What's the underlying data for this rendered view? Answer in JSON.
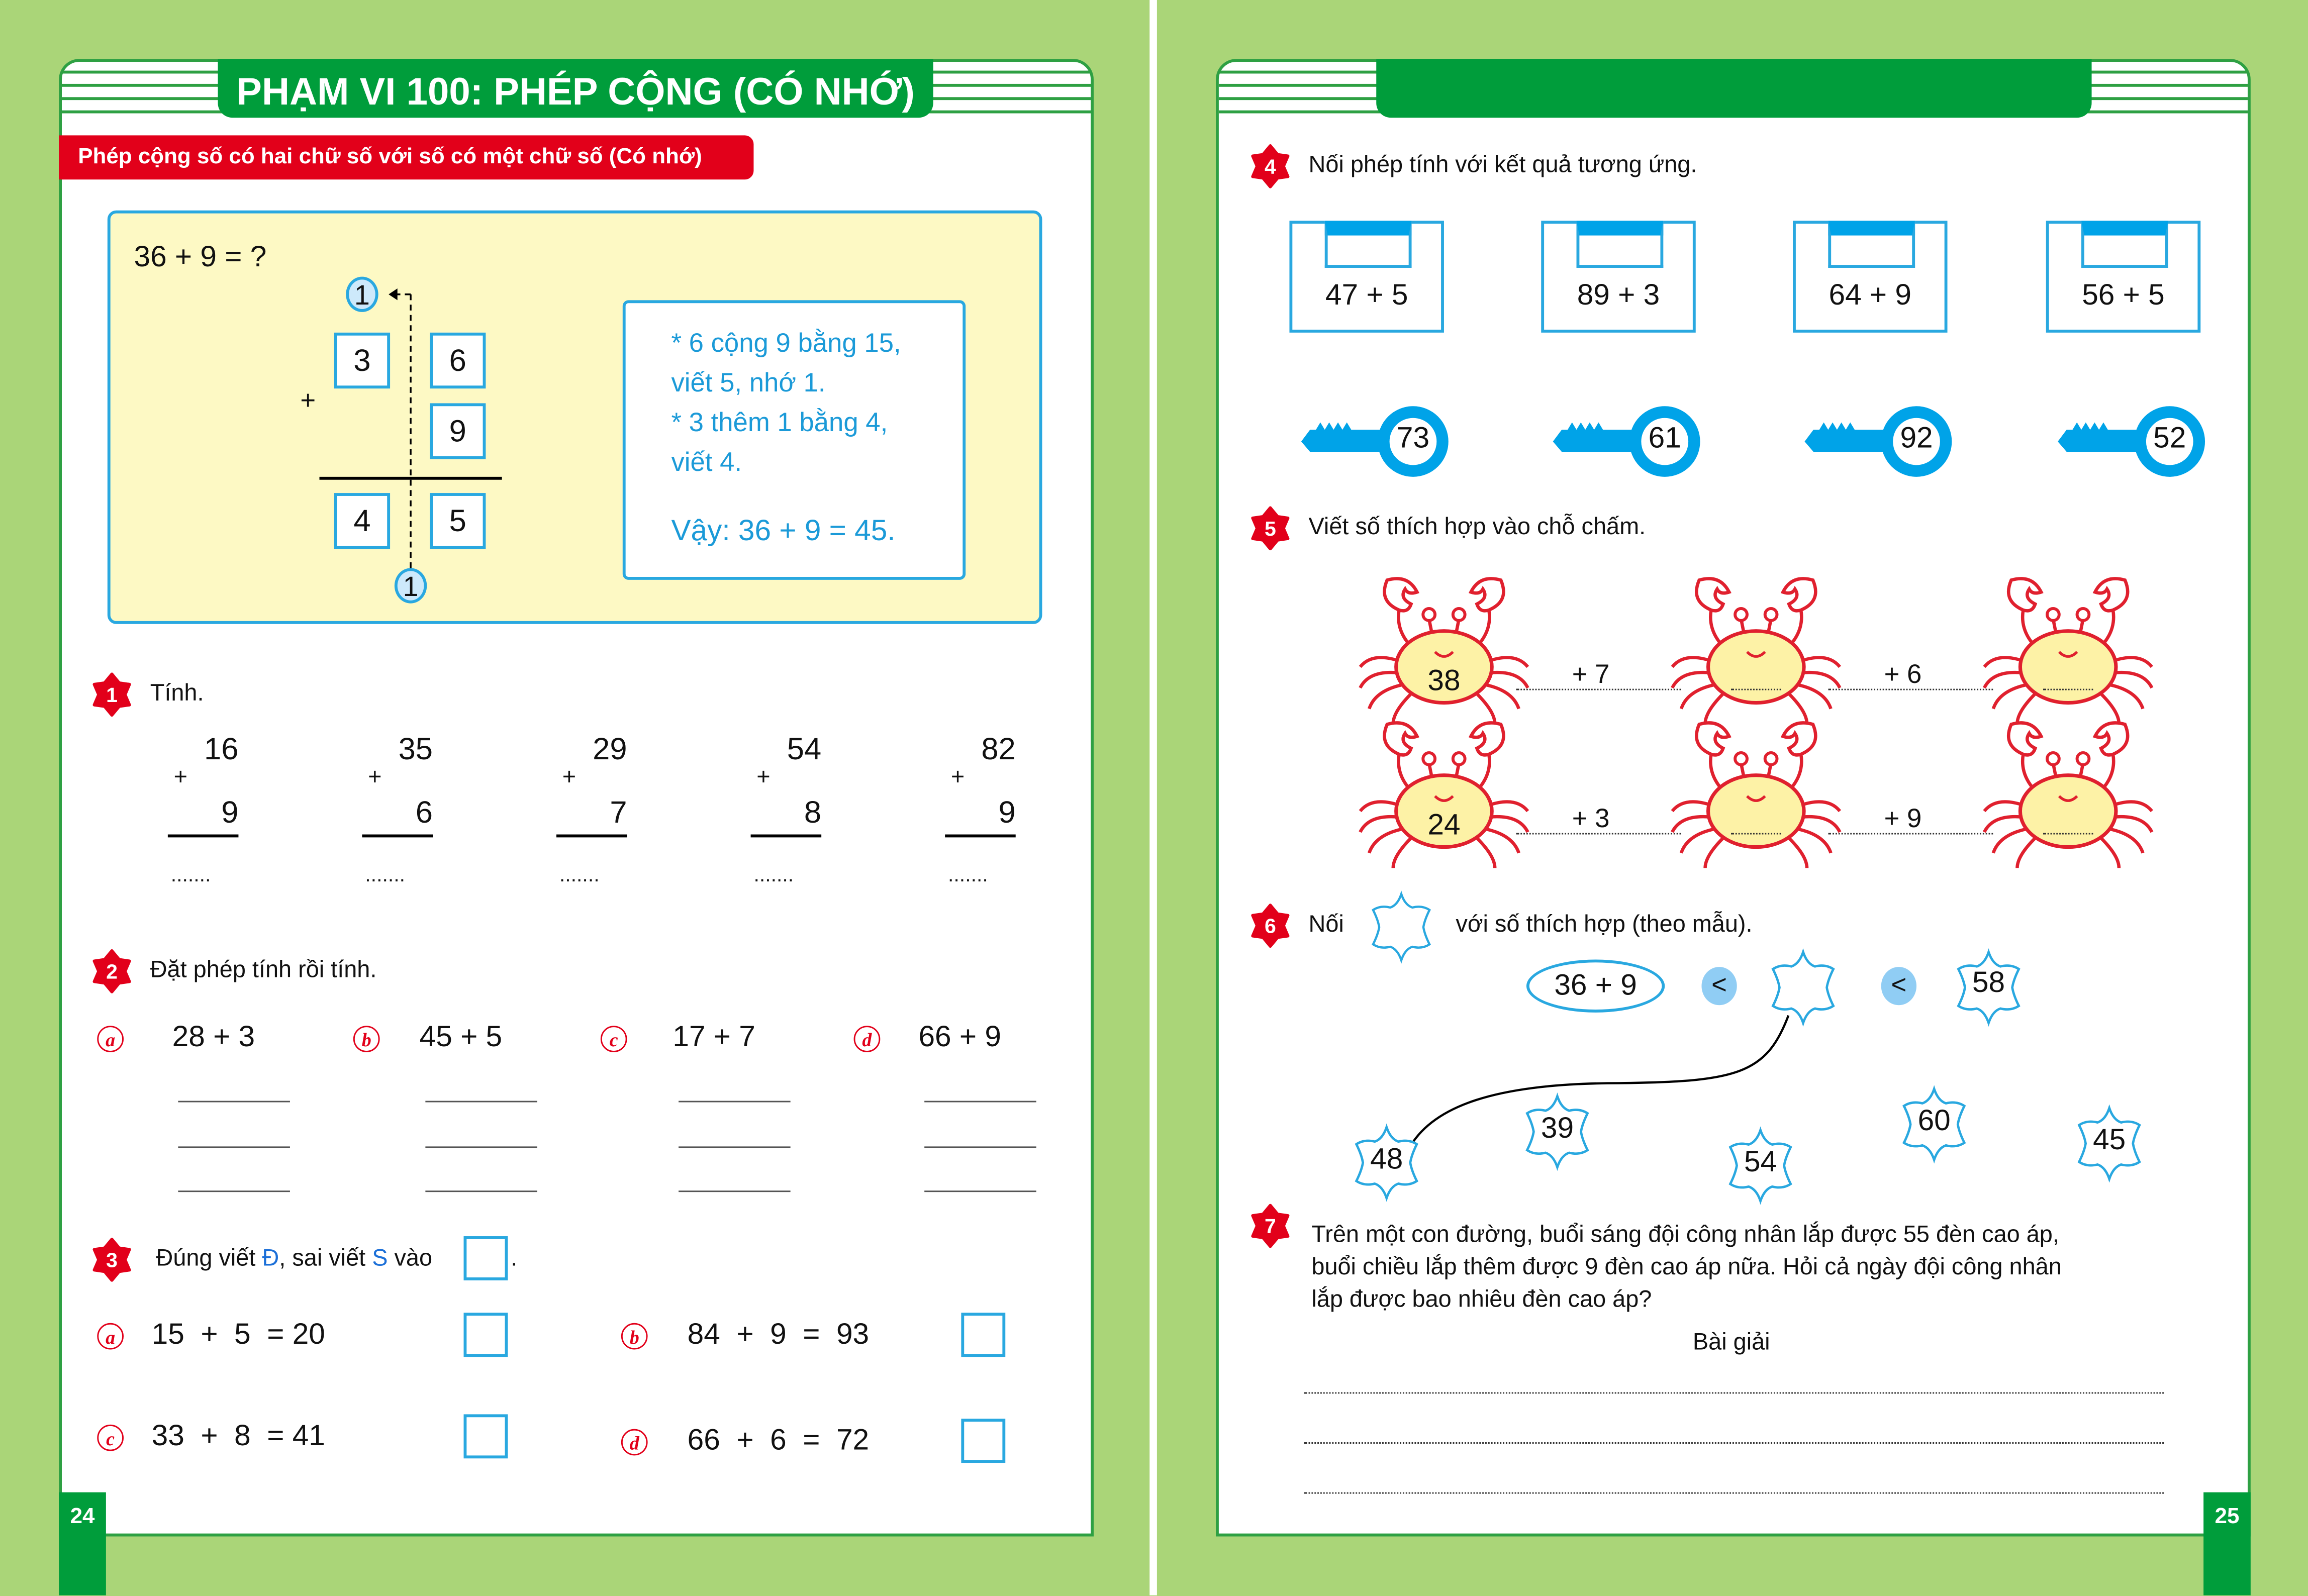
{
  "colors": {
    "background": "#aad578",
    "green": "#009d3b",
    "red": "#e2001a",
    "blue": "#29a8e0",
    "yellow": "#fdf9c4"
  },
  "left_page": {
    "title": "PHẠM VI 100: PHÉP CỘNG (CÓ NHỚ)",
    "subtitle": "Phép cộng số có hai chữ số với số có một chữ số (Có nhớ)",
    "page_number": "24",
    "example": {
      "question": "36 + 9 = ?",
      "carry_top": "1",
      "carry_bottom": "1",
      "plus": "+",
      "digits": {
        "tens_a": "3",
        "units_a": "6",
        "units_b": "9",
        "tens_r": "4",
        "units_r": "5"
      },
      "explanation": [
        "* 6 cộng 9 bằng 15,",
        "viết 5, nhớ 1.",
        "* 3 thêm 1 bằng 4,",
        "viết 4.",
        "Vậy: 36 + 9 = 45."
      ]
    },
    "ex1": {
      "number": "1",
      "instruction": "Tính.",
      "plus": "+",
      "answer_dots": ".......",
      "items": [
        {
          "top": "16",
          "bottom": "9"
        },
        {
          "top": "35",
          "bottom": "6"
        },
        {
          "top": "29",
          "bottom": "7"
        },
        {
          "top": "54",
          "bottom": "8"
        },
        {
          "top": "82",
          "bottom": "9"
        }
      ]
    },
    "ex2": {
      "number": "2",
      "instruction": "Đặt phép tính rồi tính.",
      "items": [
        {
          "letter": "a",
          "expr": "28 + 3"
        },
        {
          "letter": "b",
          "expr": "45 + 5"
        },
        {
          "letter": "c",
          "expr": "17 + 7"
        },
        {
          "letter": "d",
          "expr": "66 + 9"
        }
      ]
    },
    "ex3": {
      "number": "3",
      "instruction_a": "Đúng viết ",
      "d": "Đ",
      "instruction_b": ", sai viết ",
      "s": "S",
      "instruction_c": " vào",
      "period": ".",
      "items": [
        {
          "letter": "a",
          "expr": "15  +  5  = 20"
        },
        {
          "letter": "b",
          "expr": "84  +  9  =  93"
        },
        {
          "letter": "c",
          "expr": "33  +  8  = 41"
        },
        {
          "letter": "d",
          "expr": "66  +  6  =  72"
        }
      ]
    }
  },
  "right_page": {
    "page_number": "25",
    "ex4": {
      "number": "4",
      "instruction": "Nối phép tính với kết quả tương ứng.",
      "locks": [
        "47 + 5",
        "89 + 3",
        "64 + 9",
        "56 + 5"
      ],
      "keys": [
        "73",
        "61",
        "92",
        "52"
      ]
    },
    "ex5": {
      "number": "5",
      "instruction": "Viết số thích hợp vào chỗ chấm.",
      "rows": [
        {
          "start": "38",
          "ops": [
            "+ 7",
            "+ 6"
          ]
        },
        {
          "start": "24",
          "ops": [
            "+ 3",
            "+ 9"
          ]
        }
      ]
    },
    "ex6": {
      "number": "6",
      "instruction_a": "Nối",
      "instruction_b": "với số thích hợp (theo mẫu).",
      "expr": "36 + 9",
      "lt": "<",
      "right": "58",
      "options": [
        "48",
        "39",
        "54",
        "60",
        "45"
      ]
    },
    "ex7": {
      "number": "7",
      "lines": [
        "Trên một con đường, buổi sáng đội công nhân lắp được 55 đèn cao áp,",
        "buổi chiều lắp thêm được 9 đèn cao áp nữa. Hỏi cả ngày đội công nhân",
        "lắp được bao nhiêu đèn cao áp?"
      ],
      "solution_label": "Bài giải"
    }
  }
}
